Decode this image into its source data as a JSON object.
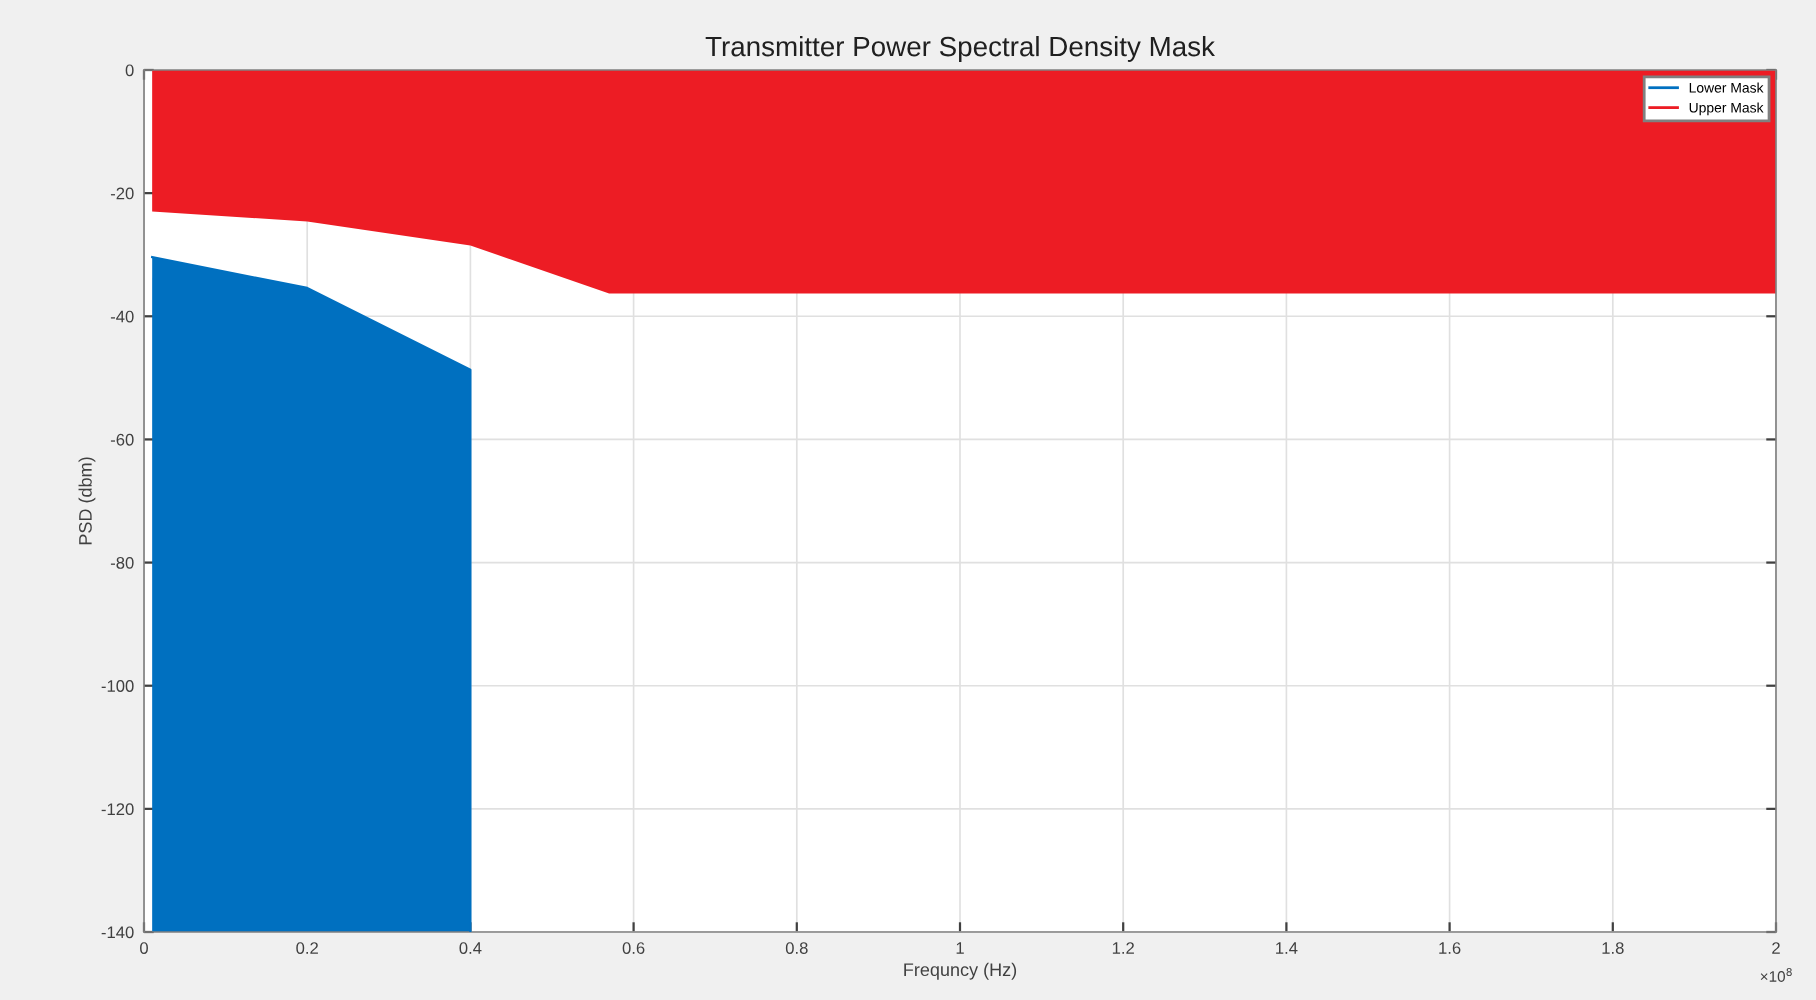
{
  "chart_data": {
    "type": "area",
    "title": "Transmitter Power Spectral Density Mask",
    "xlabel": "Frequncy (Hz)",
    "ylabel": "PSD (dbm)",
    "series": [
      {
        "name": "Lower Mask",
        "type": "line",
        "color": "#0070c0",
        "x": [
          0.01,
          0.2,
          0.4,
          0.4
        ],
        "values": [
          -30.4,
          -35.4,
          -48.7,
          -140
        ],
        "lower": [
          -140,
          -140,
          -140,
          -140
        ],
        "upper": [
          -30.4,
          -35.4,
          -48.7,
          -140
        ]
      },
      {
        "name": "Upper Mask",
        "color": "#ed1c24",
        "x": [
          0.01,
          0.2,
          0.4,
          0.57,
          2
        ],
        "values": [
          -23,
          -24.6,
          -28.5,
          -36.3,
          -36.3
        ]
      }
    ],
    "xlim": [
      0,
      2
    ],
    "xticks": [
      0,
      0.2,
      0.4,
      0.6,
      0.8,
      1,
      1.2,
      1.4,
      1.6,
      1.8,
      2
    ],
    "ylim": [
      -140,
      0
    ],
    "yticks": [
      -140,
      -120,
      -100,
      -80,
      -60,
      -40,
      -20,
      0
    ],
    "annotations": [
      "×10$^{8}$"
    ],
    "grid": true,
    "legend": "top right"
  }
}
